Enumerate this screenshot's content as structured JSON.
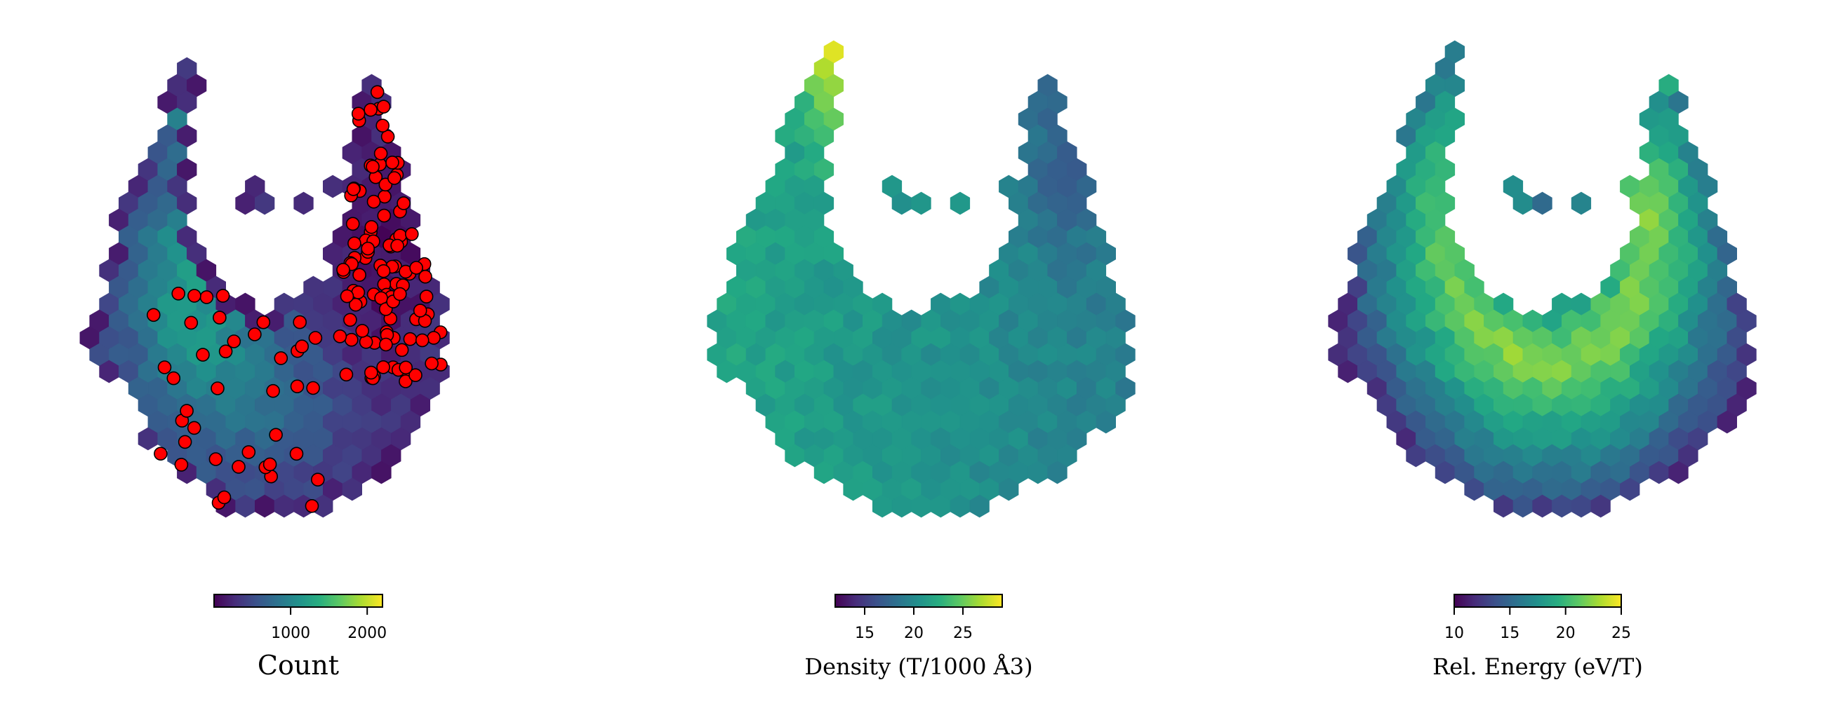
{
  "chart_data": [
    {
      "type": "heatmap",
      "subtype": "hexbin-with-scatter",
      "cmap": "viridis",
      "colorbar": {
        "label": "Count",
        "range": [
          0,
          2200
        ],
        "ticks": [
          1000,
          2000
        ],
        "tick_labels": [
          "1000",
          "2000"
        ]
      },
      "hex_field": "count",
      "overlay_points": {
        "color": "#ff0000",
        "edge_color": "#000000",
        "count_shown": 150
      }
    },
    {
      "type": "heatmap",
      "subtype": "hexbin",
      "cmap": "viridis",
      "colorbar": {
        "label": "Density (T/1000 Å3)",
        "range": [
          12,
          29
        ],
        "ticks": [
          15,
          20,
          25
        ],
        "tick_labels": [
          "15",
          "20",
          "25"
        ]
      },
      "hex_field": "density"
    },
    {
      "type": "heatmap",
      "subtype": "hexbin",
      "cmap": "viridis",
      "colorbar": {
        "label": "Rel. Energy (eV/T)",
        "range": [
          10,
          25
        ],
        "ticks": [
          10,
          15,
          20,
          25
        ],
        "tick_labels": [
          "10",
          "15",
          "20",
          "25"
        ]
      },
      "hex_field": "energy"
    }
  ]
}
